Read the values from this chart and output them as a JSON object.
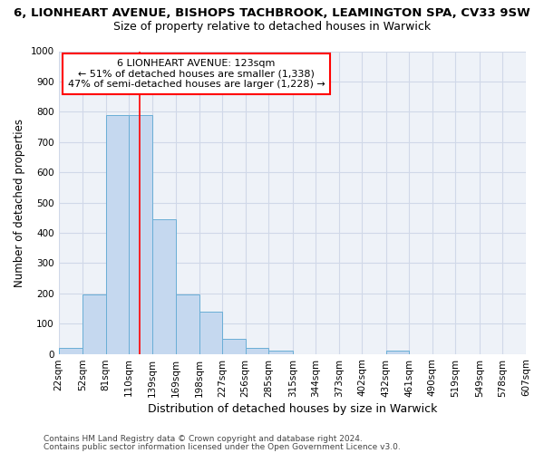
{
  "title_top": "6, LIONHEART AVENUE, BISHOPS TACHBROOK, LEAMINGTON SPA, CV33 9SW",
  "title_sub": "Size of property relative to detached houses in Warwick",
  "xlabel": "Distribution of detached houses by size in Warwick",
  "ylabel": "Number of detached properties",
  "footnote1": "Contains HM Land Registry data © Crown copyright and database right 2024.",
  "footnote2": "Contains public sector information licensed under the Open Government Licence v3.0.",
  "bar_heights": [
    20,
    195,
    790,
    790,
    445,
    195,
    140,
    50,
    20,
    12,
    0,
    0,
    0,
    0,
    10,
    0,
    0,
    0,
    0,
    0
  ],
  "bar_color": "#c5d8ef",
  "bar_edge_color": "#6aaed6",
  "bin_edges": [
    22,
    52,
    81,
    110,
    139,
    169,
    198,
    227,
    256,
    285,
    315,
    344,
    373,
    402,
    432,
    461,
    490,
    519,
    549,
    578,
    607
  ],
  "tick_labels": [
    "22sqm",
    "52sqm",
    "81sqm",
    "110sqm",
    "139sqm",
    "169sqm",
    "198sqm",
    "227sqm",
    "256sqm",
    "285sqm",
    "315sqm",
    "344sqm",
    "373sqm",
    "402sqm",
    "432sqm",
    "461sqm",
    "490sqm",
    "519sqm",
    "549sqm",
    "578sqm",
    "607sqm"
  ],
  "ylim": [
    0,
    1000
  ],
  "yticks": [
    0,
    100,
    200,
    300,
    400,
    500,
    600,
    700,
    800,
    900,
    1000
  ],
  "red_line_x": 123,
  "annotation_line1": "6 LIONHEART AVENUE: 123sqm",
  "annotation_line2": "← 51% of detached houses are smaller (1,338)",
  "annotation_line3": "47% of semi-detached houses are larger (1,228) →",
  "annotation_box_color": "white",
  "annotation_box_edgecolor": "red",
  "grid_color": "#d0d8e8",
  "background_color": "#eef2f8",
  "title_fontsize": 9.5,
  "subtitle_fontsize": 9,
  "ylabel_fontsize": 8.5,
  "xlabel_fontsize": 9,
  "tick_fontsize": 7.5,
  "annot_fontsize": 8,
  "footnote_fontsize": 6.5
}
